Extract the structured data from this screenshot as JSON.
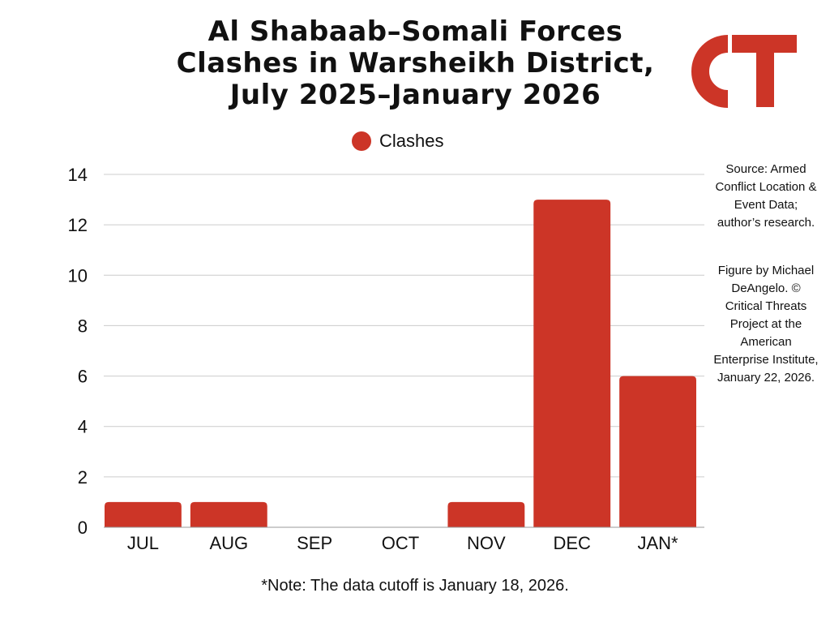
{
  "title_lines": [
    "Al Shabaab–Somali Forces",
    "Clashes in Warsheikh District,",
    "July 2025–January 2026"
  ],
  "logo_text": "CT",
  "colors": {
    "bar": "#cc3527",
    "grid": "#cccccc"
  },
  "legend": {
    "label": "Clashes"
  },
  "source": {
    "source_text": "Source: Armed Conflict Location & Event Data; author’s research.",
    "figure_text": "Figure by Michael DeAngelo. © Critical Threats Project at the American Enterprise Institute, January 22, 2026."
  },
  "note": "*Note: The data cutoff is January 18, 2026.",
  "chart_data": {
    "type": "bar",
    "title": "Al Shabaab–Somali Forces Clashes in Warsheikh District, July 2025–January 2026",
    "categories": [
      "JUL",
      "AUG",
      "SEP",
      "OCT",
      "NOV",
      "DEC",
      "JAN*"
    ],
    "series": [
      {
        "name": "Clashes",
        "values": [
          1,
          1,
          0,
          0,
          1,
          13,
          6
        ]
      }
    ],
    "yticks": [
      0,
      2,
      4,
      6,
      8,
      10,
      12,
      14
    ],
    "ylim": [
      0,
      14
    ],
    "xlabel": "",
    "ylabel": "",
    "grid": true,
    "legend_position": "top-center"
  }
}
